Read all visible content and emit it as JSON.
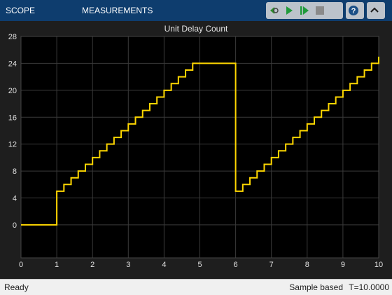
{
  "tabs": [
    {
      "label": "SCOPE"
    },
    {
      "label": "MEASUREMENTS"
    }
  ],
  "toolbar_icons": [
    "step-back-icon",
    "run-icon",
    "step-forward-icon",
    "stop-icon",
    "help-icon",
    "collapse-icon"
  ],
  "chart_data": {
    "type": "line",
    "title": "Unit Delay Count",
    "xlabel": "",
    "ylabel": "",
    "xlim": [
      0,
      10
    ],
    "ylim": [
      -4.9,
      28
    ],
    "xticks": [
      0,
      1,
      2,
      3,
      4,
      5,
      6,
      7,
      8,
      9,
      10
    ],
    "yticks": [
      0,
      4,
      8,
      12,
      16,
      20,
      24,
      28
    ],
    "grid": true,
    "line_color": "#ffd700",
    "step": true,
    "series": [
      {
        "x": [
          0,
          1,
          1.2,
          1.4,
          1.6,
          1.8,
          2.0,
          2.2,
          2.4,
          2.6,
          2.8,
          3.0,
          3.2,
          3.4,
          3.6,
          3.8,
          4.0,
          4.2,
          4.4,
          4.6,
          4.8,
          6.0,
          6.2,
          6.4,
          6.6,
          6.8,
          7.0,
          7.2,
          7.4,
          7.6,
          7.8,
          8.0,
          8.2,
          8.4,
          8.6,
          8.8,
          9.0,
          9.2,
          9.4,
          9.6,
          9.8,
          10.0
        ],
        "values": [
          0,
          5,
          6,
          7,
          8,
          9,
          10,
          11,
          12,
          13,
          14,
          15,
          16,
          17,
          18,
          19,
          20,
          21,
          22,
          23,
          24,
          5,
          6,
          7,
          8,
          9,
          10,
          11,
          12,
          13,
          14,
          15,
          16,
          17,
          18,
          19,
          20,
          21,
          22,
          23,
          24,
          25
        ]
      }
    ]
  },
  "status": {
    "state": "Ready",
    "mode": "Sample based",
    "time": "T=10.0000"
  }
}
